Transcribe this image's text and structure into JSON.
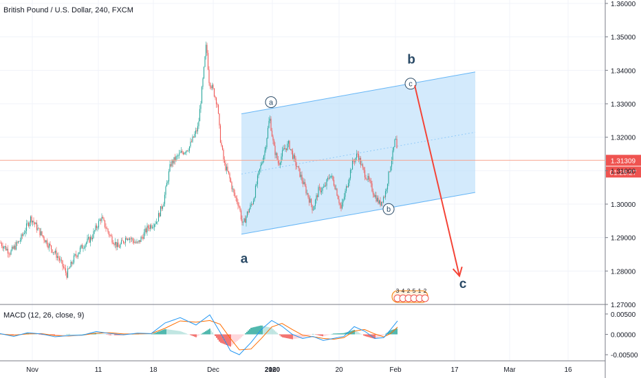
{
  "header": {
    "title": "British Pound / U.S. Dollar, 240, FXCM"
  },
  "macd_header": {
    "title": "MACD (12, 26, close, 9)"
  },
  "colors": {
    "up": "#26a69a",
    "down": "#ef5350",
    "grid": "#f0f3fa",
    "channel_fill": "#bbdefb",
    "channel_stroke": "#64b5f6",
    "arrow": "#f44336",
    "wave_text": "#2a4a66",
    "price_line": "#f7a38f",
    "price_badge": "#ef5350",
    "macd_line": "#2196f3",
    "signal_line": "#ff6d00",
    "hist_up_strong": "#26a69a",
    "hist_up_weak": "#b2dfdb",
    "hist_down_strong": "#ef5350",
    "hist_down_weak": "#ffcdd2"
  },
  "chart_data": {
    "type": "candlestick",
    "title": "British Pound / U.S. Dollar, 240, FXCM",
    "ylim": [
      1.27,
      1.36
    ],
    "y_ticks": [
      "1.36000",
      "1.35000",
      "1.34000",
      "1.33000",
      "1.32000",
      "1.31000",
      "1.30000",
      "1.29000",
      "1.28000",
      "1.27000"
    ],
    "x_ticks": [
      "Nov",
      "11",
      "18",
      "Dec",
      "16",
      "2020",
      "20",
      "Feb",
      "17",
      "Mar",
      "16"
    ],
    "last_price": "1.31309",
    "countdown": "01:25:27",
    "close_path": [
      [
        0,
        1.2885
      ],
      [
        15,
        1.2855
      ],
      [
        30,
        1.2895
      ],
      [
        45,
        1.296
      ],
      [
        55,
        1.2925
      ],
      [
        70,
        1.288
      ],
      [
        85,
        1.284
      ],
      [
        97,
        1.279
      ],
      [
        108,
        1.284
      ],
      [
        120,
        1.2875
      ],
      [
        133,
        1.29
      ],
      [
        147,
        1.296
      ],
      [
        160,
        1.2905
      ],
      [
        172,
        1.287
      ],
      [
        185,
        1.2905
      ],
      [
        200,
        1.288
      ],
      [
        215,
        1.293
      ],
      [
        228,
        1.295
      ],
      [
        238,
        1.301
      ],
      [
        248,
        1.312
      ],
      [
        262,
        1.315
      ],
      [
        275,
        1.317
      ],
      [
        288,
        1.323
      ],
      [
        296,
        1.339
      ],
      [
        300,
        1.348
      ],
      [
        304,
        1.337
      ],
      [
        310,
        1.334
      ],
      [
        316,
        1.33
      ],
      [
        320,
        1.32
      ],
      [
        326,
        1.312
      ],
      [
        332,
        1.309
      ],
      [
        340,
        1.303
      ],
      [
        347,
        1.3
      ],
      [
        353,
        1.2935
      ],
      [
        360,
        1.2975
      ],
      [
        368,
        1.301
      ],
      [
        376,
        1.309
      ],
      [
        385,
        1.316
      ],
      [
        392,
        1.326
      ],
      [
        398,
        1.317
      ],
      [
        405,
        1.312
      ],
      [
        412,
        1.316
      ],
      [
        420,
        1.318
      ],
      [
        428,
        1.313
      ],
      [
        436,
        1.309
      ],
      [
        445,
        1.304
      ],
      [
        455,
        1.2985
      ],
      [
        463,
        1.304
      ],
      [
        472,
        1.305
      ],
      [
        480,
        1.309
      ],
      [
        488,
        1.305
      ],
      [
        496,
        1.2985
      ],
      [
        505,
        1.306
      ],
      [
        512,
        1.312
      ],
      [
        520,
        1.315
      ],
      [
        528,
        1.31
      ],
      [
        536,
        1.307
      ],
      [
        544,
        1.303
      ],
      [
        552,
        1.3
      ],
      [
        560,
        1.303
      ],
      [
        567,
        1.311
      ],
      [
        572,
        1.316
      ],
      [
        575,
        1.32
      ],
      [
        578,
        1.3135
      ]
    ],
    "channel": {
      "lower": [
        [
          "Dec 23",
          1.291
        ],
        [
          "Feb 20",
          1.3035
        ]
      ],
      "upper": [
        [
          "Dec 23",
          1.327
        ],
        [
          "Feb 20",
          1.3395
        ]
      ],
      "midline": [
        [
          "Dec 23",
          1.309
        ],
        [
          "Feb 20",
          1.3215
        ]
      ]
    },
    "wave_labels": [
      {
        "text": "a",
        "style": "plain",
        "price": 1.2835
      },
      {
        "text": "b",
        "style": "plain",
        "price": 1.343
      },
      {
        "text": "c",
        "style": "plain",
        "price": 1.276
      },
      {
        "text": "a",
        "style": "circled",
        "price": 1.3305
      },
      {
        "text": "b",
        "style": "circled",
        "price": 1.2985
      },
      {
        "text": "c",
        "style": "circled",
        "price": 1.336
      }
    ],
    "projection_arrow": {
      "from": 1.3355,
      "to": 1.2785
    },
    "event_markers": [
      "3",
      "4",
      "2",
      "5",
      "1",
      "2"
    ],
    "macd": {
      "ylim": [
        -0.0065,
        0.0065
      ],
      "y_ticks": [
        "0.00500",
        "0.00000",
        "-0.00500"
      ],
      "macd_path": [
        [
          0,
          0.0002
        ],
        [
          20,
          -0.0005
        ],
        [
          40,
          0.0004
        ],
        [
          60,
          0.0001
        ],
        [
          80,
          -0.0006
        ],
        [
          100,
          -0.0003
        ],
        [
          120,
          -0.0002
        ],
        [
          140,
          0.0007
        ],
        [
          160,
          0.0002
        ],
        [
          180,
          -0.0001
        ],
        [
          200,
          0.0003
        ],
        [
          220,
          0.0002
        ],
        [
          240,
          0.0028
        ],
        [
          262,
          0.0041
        ],
        [
          285,
          0.0023
        ],
        [
          305,
          0.0048
        ],
        [
          320,
          0.0005
        ],
        [
          335,
          -0.004
        ],
        [
          348,
          -0.005
        ],
        [
          365,
          -0.002
        ],
        [
          380,
          0.0012
        ],
        [
          395,
          0.0034
        ],
        [
          410,
          0.002
        ],
        [
          425,
          0.0
        ],
        [
          440,
          -0.001
        ],
        [
          455,
          -0.0005
        ],
        [
          470,
          -0.0015
        ],
        [
          485,
          -0.001
        ],
        [
          500,
          -0.0005
        ],
        [
          515,
          0.0019
        ],
        [
          530,
          0.0008
        ],
        [
          545,
          -0.001
        ],
        [
          558,
          -0.0008
        ],
        [
          568,
          0.0012
        ],
        [
          578,
          0.0033
        ]
      ],
      "signal_path": [
        [
          0,
          0.0001
        ],
        [
          20,
          -0.0002
        ],
        [
          40,
          0.0001
        ],
        [
          60,
          0.0002
        ],
        [
          80,
          -0.0003
        ],
        [
          100,
          -0.0004
        ],
        [
          120,
          -0.0002
        ],
        [
          140,
          0.0003
        ],
        [
          160,
          0.0004
        ],
        [
          180,
          0.0001
        ],
        [
          200,
          0.0001
        ],
        [
          220,
          0.0002
        ],
        [
          240,
          0.0015
        ],
        [
          262,
          0.0033
        ],
        [
          285,
          0.003
        ],
        [
          305,
          0.0034
        ],
        [
          320,
          0.0025
        ],
        [
          335,
          -0.001
        ],
        [
          348,
          -0.0038
        ],
        [
          365,
          -0.0036
        ],
        [
          380,
          -0.001
        ],
        [
          395,
          0.0018
        ],
        [
          410,
          0.0027
        ],
        [
          425,
          0.0012
        ],
        [
          440,
          -0.0002
        ],
        [
          455,
          -0.0006
        ],
        [
          470,
          -0.001
        ],
        [
          485,
          -0.0012
        ],
        [
          500,
          -0.0008
        ],
        [
          515,
          0.0008
        ],
        [
          530,
          0.0012
        ],
        [
          545,
          0.0001
        ],
        [
          558,
          -0.0006
        ],
        [
          568,
          0.0002
        ],
        [
          578,
          0.0018
        ]
      ]
    }
  }
}
